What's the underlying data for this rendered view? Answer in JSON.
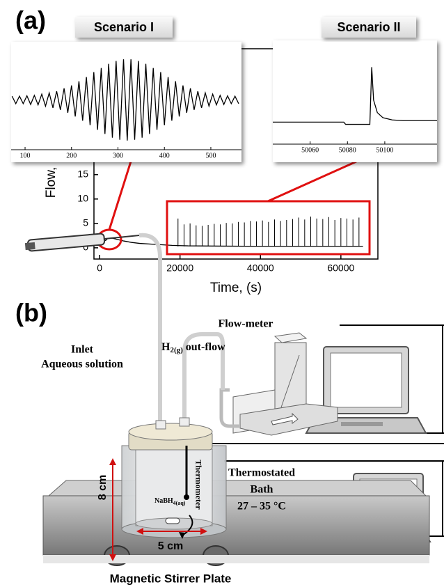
{
  "panel_labels": {
    "a": "(a)",
    "b": "(b)"
  },
  "chart_data": [
    {
      "type": "line",
      "ylabel": "Flow,",
      "xlabel": "Time, (s)",
      "xlim": [
        -1400,
        69200
      ],
      "ylim": [
        -2.3,
        40.8
      ],
      "xticks": [
        0,
        20000,
        40000,
        60000
      ],
      "yticks": [
        0,
        5,
        10,
        15
      ],
      "series": [
        {
          "kind": "line",
          "color": "#000000",
          "x": [
            0,
            500,
            1000,
            1500,
            2000,
            3000,
            4000,
            6000,
            8000,
            10000,
            14000,
            18000,
            22000,
            30000,
            40000,
            50000,
            60000,
            65500
          ],
          "values": [
            0.2,
            1.5,
            1.8,
            1.5,
            1.9,
            2.0,
            1.8,
            1.4,
            1.1,
            0.9,
            0.7,
            0.5,
            0.4,
            0.35,
            0.3,
            0.3,
            0.3,
            0.3
          ]
        },
        {
          "kind": "spikes",
          "color": "#000000",
          "x": [
            19500,
            21000,
            22500,
            24000,
            25500,
            27000,
            28500,
            30000,
            31500,
            33000,
            34500,
            36000,
            37500,
            39000,
            40500,
            42000,
            43500,
            45000,
            46500,
            48000,
            49500,
            51000,
            52500,
            54000,
            55500,
            57000,
            58500,
            60000,
            61500,
            63000,
            64500
          ],
          "values": [
            6.0,
            4.8,
            5.0,
            4.6,
            4.5,
            4.7,
            4.9,
            4.8,
            5.1,
            5.0,
            5.3,
            5.2,
            5.5,
            5.4,
            5.6,
            5.3,
            5.8,
            5.5,
            5.7,
            5.9,
            6.2,
            5.8,
            6.4,
            6.0,
            5.9,
            6.3,
            5.7,
            6.1,
            6.0,
            5.8,
            6.2
          ]
        }
      ]
    },
    {
      "type": "line",
      "title": "Scenario I",
      "xlim": [
        70,
        566
      ],
      "ylim": [
        -12,
        12
      ],
      "xticks": [
        100,
        200,
        300,
        400,
        500
      ],
      "series": [
        {
          "kind": "line",
          "color": "#000000",
          "x": [
            72,
            80,
            88,
            96,
            104,
            112,
            120,
            128,
            136,
            144,
            152,
            160,
            168,
            176,
            184,
            192,
            200,
            208,
            216,
            224,
            232,
            240,
            248,
            256,
            264,
            272,
            280,
            288,
            296,
            304,
            312,
            320,
            328,
            336,
            344,
            352,
            360,
            368,
            376,
            384,
            392,
            400,
            408,
            416,
            424,
            432,
            440,
            448,
            456,
            464,
            472,
            480,
            488,
            496,
            504,
            512,
            520,
            528,
            536,
            544,
            552,
            560
          ],
          "values": [
            0.9,
            -0.9,
            0.9,
            -0.9,
            1.0,
            -1.1,
            1.1,
            -1.2,
            1.4,
            -1.5,
            1.7,
            -1.9,
            2.1,
            -2.4,
            2.8,
            -3.1,
            3.5,
            -4.0,
            4.5,
            -5.0,
            5.5,
            -6.1,
            6.7,
            -7.2,
            7.7,
            -8.2,
            8.7,
            -9.1,
            9.4,
            -9.6,
            9.8,
            -9.8,
            9.8,
            -9.6,
            9.4,
            -9.1,
            8.7,
            -8.2,
            7.7,
            -7.2,
            6.7,
            -6.1,
            5.5,
            -5.0,
            4.5,
            -4.0,
            3.5,
            -3.1,
            2.8,
            -2.4,
            2.1,
            -1.9,
            1.7,
            -1.5,
            1.4,
            -1.2,
            1.1,
            -1.1,
            1.0,
            -0.9,
            0.9,
            -0.9
          ]
        }
      ]
    },
    {
      "type": "line",
      "title": "Scenario II",
      "xlim": [
        50040,
        50128
      ],
      "ylim": [
        -3,
        10
      ],
      "xticks": [
        50060,
        50080,
        50100
      ],
      "series": [
        {
          "kind": "line",
          "color": "#000000",
          "x": [
            50040,
            50078,
            50079,
            50092,
            50093,
            50094,
            50096,
            50099,
            50104,
            50110,
            50128
          ],
          "values": [
            0,
            0,
            -0.3,
            -0.3,
            7.5,
            3,
            1.3,
            0.6,
            0.3,
            0.2,
            0.2
          ]
        }
      ]
    }
  ],
  "diagram": {
    "flow_meter": "Flow-meter",
    "outflow": {
      "main": "H",
      "sub": "2(g)",
      "rest": " out-flow"
    },
    "inlet": [
      "Inlet",
      "Aqueous solution"
    ],
    "bath": [
      "Thermostated",
      "Bath",
      "27 – 35 °C"
    ],
    "thermometer": "Thermometer",
    "reagent": {
      "main": "NaBH",
      "sub": "4(aq)"
    },
    "height": "8 cm",
    "width": "5 cm",
    "plate": "Magnetic Stirrer Plate"
  }
}
